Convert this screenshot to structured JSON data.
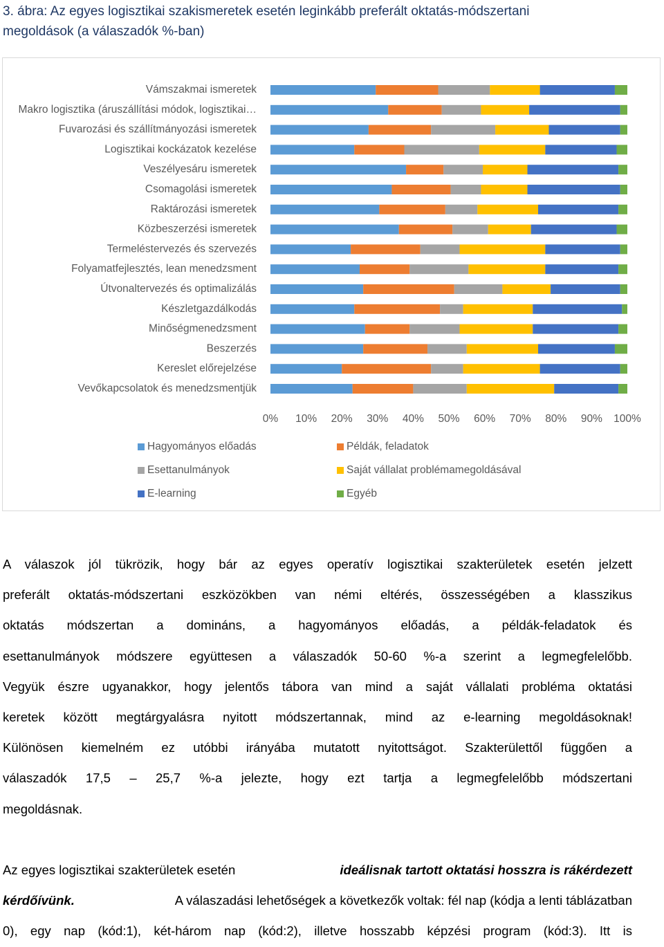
{
  "title_lines": [
    "3. ábra: Az egyes logisztikai szakismeretek esetén leginkább preferált oktatás-módszertani",
    "megoldások (a válaszadók %-ban)"
  ],
  "chart_data": {
    "type": "bar",
    "orientation": "horizontal",
    "stacked": "percent",
    "categories": [
      "Vámszakmai ismeretek",
      "Makro logisztika (áruszállítási módok, logisztikai…",
      "Fuvarozási és szállítmányozási ismeretek",
      "Logisztikai kockázatok kezelése",
      "Veszélyesáru ismeretek",
      "Csomagolási ismeretek",
      "Raktározási ismeretek",
      "Közbeszerzési ismeretek",
      "Termeléstervezés és szervezés",
      "Folyamatfejlesztés, lean menedzsment",
      "Útvonaltervezés és optimalizálás",
      "Készletgazdálkodás",
      "Minőségmenedzsment",
      "Beszerzés",
      "Kereslet előrejelzése",
      "Vevőkapcsolatok és menedzsmentjük"
    ],
    "series": [
      {
        "name": "Hagyományos előadás",
        "color": "#5b9bd5",
        "values": [
          29.5,
          33,
          27.5,
          23.5,
          38,
          34,
          30.5,
          36,
          22.5,
          25,
          26,
          23.5,
          26.5,
          26,
          20,
          23
        ]
      },
      {
        "name": "Példák, feladatok",
        "color": "#ed7d31",
        "values": [
          17.5,
          15,
          17.5,
          14,
          10.5,
          16.5,
          18.5,
          15,
          19.5,
          14,
          25.5,
          24,
          12.5,
          18,
          25,
          17
        ]
      },
      {
        "name": "Esettanulmányok",
        "color": "#a5a5a5",
        "values": [
          14.5,
          11,
          18,
          21,
          11,
          8.5,
          9,
          10,
          11,
          16.5,
          13.5,
          6.5,
          14,
          11,
          9,
          15
        ]
      },
      {
        "name": "Saját vállalat problémamegoldásával",
        "color": "#ffc000",
        "values": [
          14,
          13.5,
          15,
          18.5,
          12.5,
          13,
          17,
          12,
          24,
          21.5,
          13.5,
          19.5,
          20.5,
          20,
          21.5,
          24.5
        ]
      },
      {
        "name": "E-learning",
        "color": "#4472c4",
        "values": [
          21,
          25.5,
          20,
          20,
          25.5,
          26,
          22.5,
          24,
          21,
          20.5,
          19.5,
          25,
          24,
          21.5,
          22.5,
          18
        ]
      },
      {
        "name": "Egyéb",
        "color": "#70ad47",
        "values": [
          3.5,
          2,
          2,
          3,
          2.5,
          2,
          2.5,
          3,
          2,
          2.5,
          2,
          1.5,
          2.5,
          3.5,
          2,
          2.5
        ]
      }
    ],
    "xlim": [
      0,
      100
    ],
    "x_ticks": [
      "0%",
      "10%",
      "20%",
      "30%",
      "40%",
      "50%",
      "60%",
      "70%",
      "80%",
      "90%",
      "100%"
    ],
    "legend_position": "bottom",
    "grid": false
  },
  "paragraph1": [
    "A válaszok jól tükrözik, hogy bár az egyes operatív logisztikai szakterületek esetén jelzett",
    "preferált oktatás-módszertani eszközökben van némi eltérés, összességében a klasszikus",
    "oktatás módszertan a domináns, a hagyományos előadás, a példák-feladatok és",
    "esettanulmányok módszere együttesen a válaszadók 50-60 %-a szerint a legmegfelelőbb.",
    "Vegyük észre ugyanakkor, hogy jelentős tábora van mind a saját vállalati probléma oktatási",
    "keretek között megtárgyalásra nyitott módszertannak, mind az e-learning megoldásoknak!",
    "Különösen kiemelném ez utóbbi irányába mutatott nyitottságot. Szakterülettől függően a",
    "válaszadók 17,5 – 25,7 %-a jelezte, hogy ezt tartja a legmegfelelőbb módszertani",
    "megoldásnak."
  ],
  "paragraph2": {
    "line1_pre": "Az egyes logisztikai szakterületek esetén ",
    "line1_em": "ideálisnak tartott oktatási hosszra is rákérdezett",
    "line2_em": "kérdőívünk.",
    "line2_post": " A válaszadási lehetőségek a következők voltak: fél nap (kódja a lenti táblázatban",
    "line3": "0), egy nap (kód:1), két-három nap (kód:2), illetve hosszabb képzési program (kód:3). Itt is"
  }
}
